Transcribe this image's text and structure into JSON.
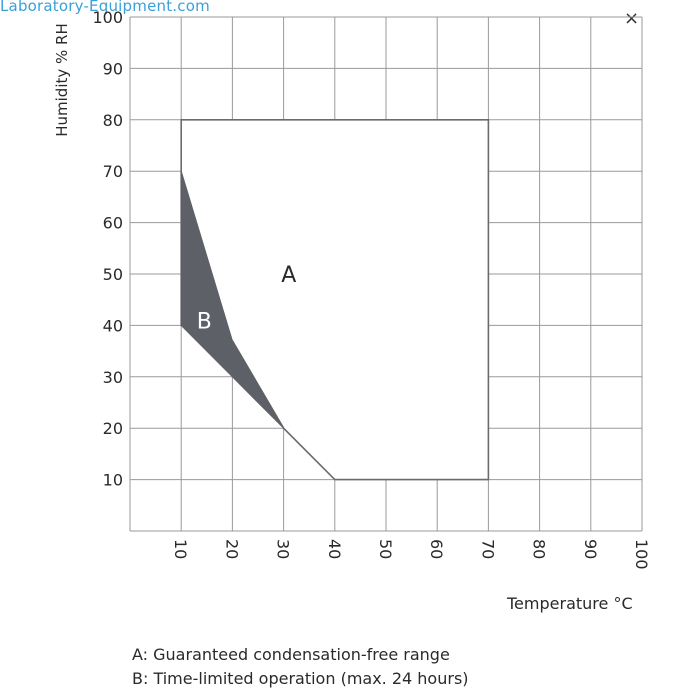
{
  "watermark": "Laboratory-Equipment.com",
  "close_icon_glyph": "×",
  "notes": [
    "A: Guaranteed condensation-free range",
    "B: Time-limited operation (max. 24 hours)"
  ],
  "colors": {
    "grid": "#9a9a9a",
    "region_a_border": "#6b6b6b",
    "region_b_fill": "#5d6066",
    "text": "#2a2a2a",
    "watermark": "#3aa0d8"
  },
  "chart_data": {
    "type": "area",
    "xlabel": "Temperature °C",
    "ylabel": "Humidity % RH",
    "xlim": [
      0,
      100
    ],
    "ylim": [
      0,
      100
    ],
    "grid": true,
    "x_ticks": [
      "10",
      "20",
      "30",
      "40",
      "50",
      "60",
      "70",
      "80",
      "90",
      "100"
    ],
    "y_ticks": [
      "10",
      "20",
      "30",
      "40",
      "50",
      "60",
      "70",
      "80",
      "90",
      "100"
    ],
    "regions": [
      {
        "name": "A",
        "points": [
          [
            10,
            80
          ],
          [
            70,
            80
          ],
          [
            70,
            10
          ],
          [
            40,
            10
          ],
          [
            30,
            20
          ],
          [
            20,
            37
          ],
          [
            10,
            40
          ]
        ]
      },
      {
        "name": "B",
        "points": [
          [
            10,
            70
          ],
          [
            20,
            37
          ],
          [
            30,
            20
          ],
          [
            20,
            30
          ],
          [
            10,
            40
          ]
        ]
      }
    ],
    "region_labels": [
      {
        "text": "A",
        "x": 31,
        "y": 50
      },
      {
        "text": "B",
        "x": 14.5,
        "y": 41
      }
    ]
  }
}
